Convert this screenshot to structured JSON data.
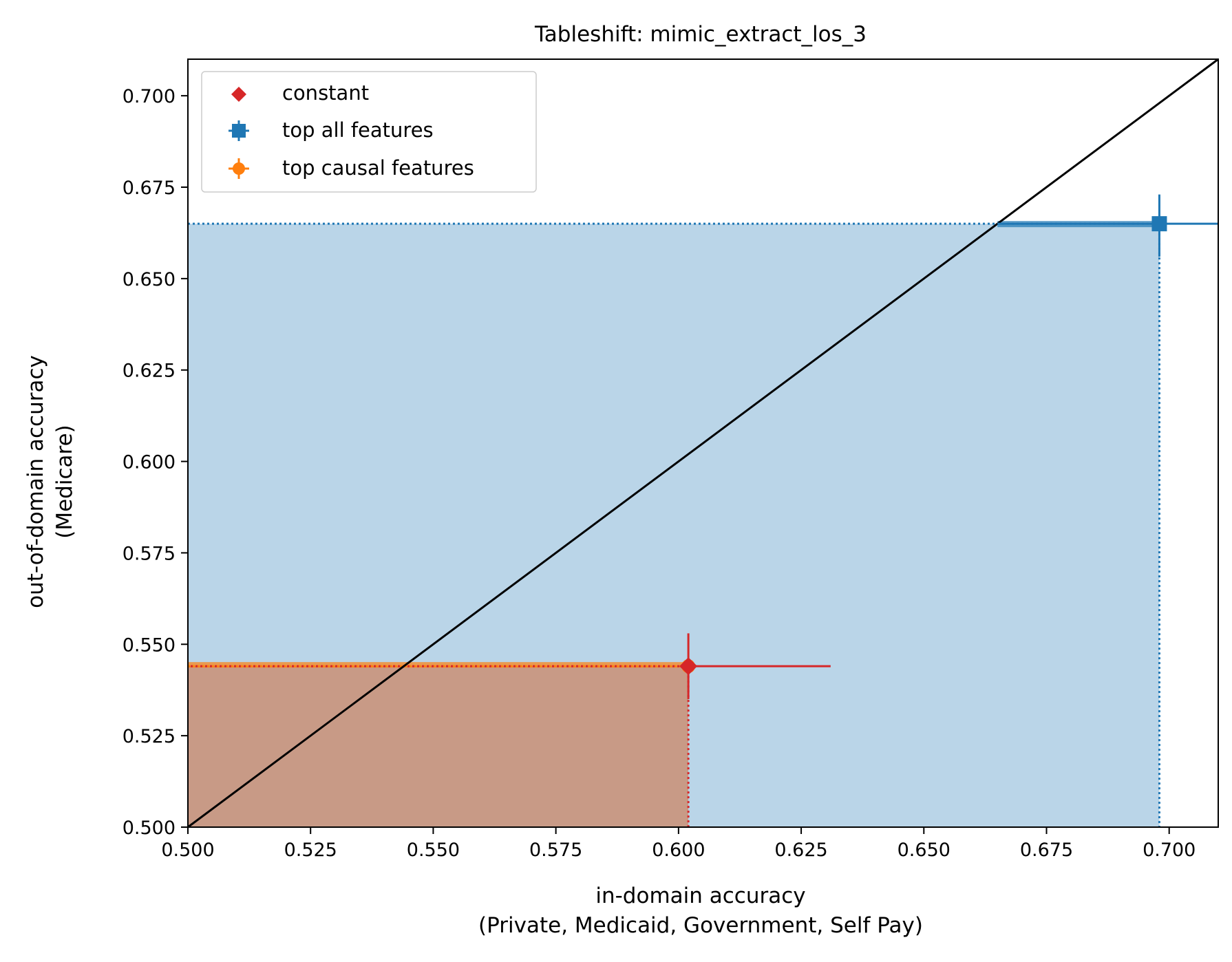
{
  "chart_data": {
    "type": "scatter",
    "title": "Tableshift: mimic_extract_los_3",
    "xlabel": [
      "in-domain accuracy",
      "(Private, Medicaid, Government, Self Pay)"
    ],
    "ylabel": [
      "out-of-domain accuracy",
      "(Medicare)"
    ],
    "xlim": [
      0.5,
      0.71
    ],
    "ylim": [
      0.5,
      0.71
    ],
    "xticks": [
      "0.500",
      "0.525",
      "0.550",
      "0.575",
      "0.600",
      "0.625",
      "0.650",
      "0.675",
      "0.700"
    ],
    "yticks": [
      "0.500",
      "0.525",
      "0.550",
      "0.575",
      "0.600",
      "0.625",
      "0.650",
      "0.675",
      "0.700"
    ],
    "grid": false,
    "legend_position": "top-left",
    "diagonal": {
      "from": [
        0.5,
        0.5
      ],
      "to": [
        0.71,
        0.71
      ],
      "color": "#000000"
    },
    "series": [
      {
        "name": "constant",
        "marker": "diamond",
        "color": "#d62728",
        "x": 0.602,
        "y": 0.544,
        "x_err": [
          0.602,
          0.631
        ],
        "y_err": [
          0.535,
          0.553
        ],
        "fill_color": "#f5a05a"
      },
      {
        "name": "top all features",
        "marker": "square",
        "color": "#1f77b4",
        "x": 0.698,
        "y": 0.665,
        "x_err": [
          0.665,
          0.71
        ],
        "y_err": [
          0.656,
          0.673
        ],
        "fill_color": "#bad5e8"
      },
      {
        "name": "top causal features",
        "marker": "circle",
        "color": "#ff7f0e",
        "x": 0.602,
        "y": 0.544,
        "x_err": [
          0.602,
          0.602
        ],
        "y_err": [
          0.544,
          0.544
        ],
        "fill_color": "#f5a05a"
      }
    ],
    "overlap_fill": "#c89a86"
  }
}
